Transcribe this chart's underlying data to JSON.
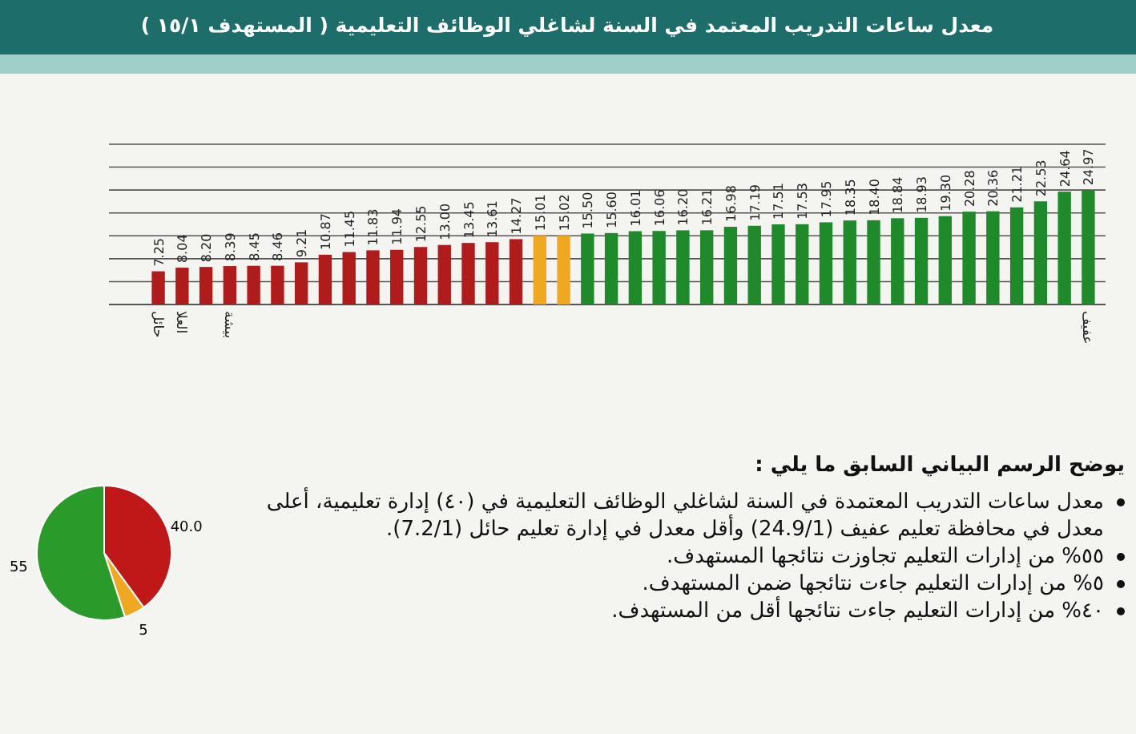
{
  "chart_data": [
    {
      "type": "bar",
      "title": "معدل ساعات التدريب المعتمد في السنة لشاغلي الوظائف التعليمية ( المستهدف ١٥/١ )",
      "categories": [
        "حائل",
        "العلا",
        null,
        "بيشة",
        null,
        null,
        null,
        null,
        null,
        null,
        null,
        null,
        null,
        null,
        null,
        null,
        null,
        null,
        null,
        null,
        null,
        null,
        null,
        null,
        null,
        null,
        null,
        null,
        null,
        null,
        null,
        null,
        null,
        null,
        null,
        null,
        null,
        null,
        null,
        "عفيف"
      ],
      "values": [
        7.25,
        8.04,
        8.2,
        8.39,
        8.45,
        8.46,
        9.21,
        10.87,
        11.45,
        11.83,
        11.94,
        12.55,
        13.0,
        13.45,
        13.61,
        14.27,
        15.01,
        15.02,
        15.5,
        15.6,
        16.01,
        16.06,
        16.2,
        16.21,
        16.98,
        17.19,
        17.51,
        17.53,
        17.95,
        18.35,
        18.4,
        18.84,
        18.93,
        19.3,
        20.28,
        20.36,
        21.21,
        22.53,
        24.64,
        24.97
      ],
      "colors": [
        "#b01c1c",
        "#b01c1c",
        "#b01c1c",
        "#b01c1c",
        "#b01c1c",
        "#b01c1c",
        "#b01c1c",
        "#b01c1c",
        "#b01c1c",
        "#b01c1c",
        "#b01c1c",
        "#b01c1c",
        "#b01c1c",
        "#b01c1c",
        "#b01c1c",
        "#b01c1c",
        "#f0a820",
        "#f0a820",
        "#1e8a2a",
        "#1e8a2a",
        "#1e8a2a",
        "#1e8a2a",
        "#1e8a2a",
        "#1e8a2a",
        "#1e8a2a",
        "#1e8a2a",
        "#1e8a2a",
        "#1e8a2a",
        "#1e8a2a",
        "#1e8a2a",
        "#1e8a2a",
        "#1e8a2a",
        "#1e8a2a",
        "#1e8a2a",
        "#1e8a2a",
        "#1e8a2a",
        "#1e8a2a",
        "#1e8a2a",
        "#1e8a2a",
        "#1e8a2a"
      ],
      "ylim": [
        0,
        35
      ],
      "yticks": [
        {
          "value": 0,
          "label": null
        },
        {
          "value": 5,
          "label": null
        },
        {
          "value": 10,
          "label": null
        },
        {
          "value": 15,
          "label": null
        },
        {
          "value": 20,
          "label": null
        },
        {
          "value": 25,
          "label": null
        },
        {
          "value": 30,
          "label": null
        },
        {
          "value": 35,
          "label": null
        }
      ],
      "value_labels": [
        "7.25",
        "8.04",
        "8.20",
        "8.39",
        "8.45",
        "8.46",
        "9.21",
        "10.87",
        "11.45",
        "11.83",
        "11.94",
        "12.55",
        "13.00",
        "13.45",
        "13.61",
        "14.27",
        "15.01",
        "15.02",
        "15.50",
        "15.60",
        "16.01",
        "16.06",
        "16.20",
        "16.21",
        "16.98",
        "17.19",
        "17.51",
        "17.53",
        "17.95",
        "18.35",
        "18.40",
        "18.84",
        "18.93",
        "19.30",
        "20.28",
        "20.36",
        "21.21",
        "22.53",
        "24.64",
        "24.97"
      ],
      "grid": "y",
      "tick_labels": "x"
    },
    {
      "type": "pie",
      "categories": [
        null,
        null,
        null
      ],
      "values": [
        40,
        5,
        55
      ],
      "colors": [
        "#c01818",
        "#f0a820",
        "#2a9a2a"
      ],
      "value_labels": [
        "40.0",
        "5",
        "55"
      ],
      "annotations": [
        "يوضح الرسم البياني السابق ما يلي :",
        "معدل ساعات التدريب المعتمدة في السنة لشاغلي الوظائف التعليمية في (٤٠) إدارة تعليمية، أعلى معدل في محافظة تعليم عفيف (24.9/1) وأقل معدل في إدارة تعليم حائل (7.2/1).",
        "٥٥% من إدارات التعليم تجاوزت نتائجها المستهدف.",
        "٥% من إدارات التعليم جاءت نتائجها ضمن المستهدف.",
        "٤٠% من إدارات التعليم جاءت نتائجها أقل من المستهدف."
      ]
    }
  ]
}
